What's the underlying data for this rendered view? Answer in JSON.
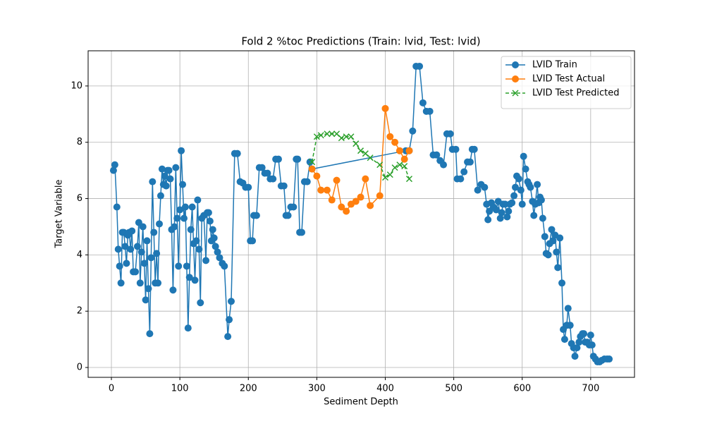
{
  "chart_data": {
    "type": "line",
    "title": "Fold 2 %toc Predictions (Train: lvid, Test: lvid)",
    "x_label": "Sediment Depth",
    "y_label": "Target Variable",
    "xlim": [
      -34,
      764
    ],
    "ylim": [
      -0.35,
      11.25
    ],
    "xticks": [
      0,
      100,
      200,
      300,
      400,
      500,
      600,
      700
    ],
    "yticks": [
      0,
      2,
      4,
      6,
      8,
      10
    ],
    "grid": true,
    "legend": "upper right",
    "series": [
      {
        "name": "LVID Train",
        "color": "#1f77b4",
        "marker": "circle",
        "linestyle": "solid",
        "x": [
          3,
          5,
          8,
          10,
          12,
          14,
          16,
          18,
          20,
          22,
          24,
          26,
          28,
          30,
          32,
          35,
          38,
          40,
          42,
          44,
          46,
          48,
          50,
          52,
          54,
          56,
          58,
          60,
          62,
          64,
          66,
          68,
          70,
          72,
          74,
          76,
          78,
          80,
          82,
          84,
          86,
          88,
          90,
          92,
          94,
          96,
          98,
          100,
          102,
          104,
          106,
          108,
          110,
          112,
          114,
          116,
          118,
          120,
          122,
          124,
          126,
          128,
          130,
          132,
          135,
          138,
          140,
          142,
          144,
          146,
          148,
          150,
          152,
          155,
          158,
          162,
          165,
          170,
          172,
          175,
          180,
          184,
          188,
          192,
          196,
          200,
          203,
          206,
          208,
          212,
          216,
          220,
          224,
          228,
          232,
          236,
          240,
          244,
          248,
          252,
          255,
          258,
          262,
          266,
          270,
          272,
          275,
          278,
          282,
          286,
          290,
          293,
          430,
          435,
          440,
          445,
          450,
          455,
          460,
          465,
          470,
          475,
          480,
          485,
          490,
          495,
          498,
          503,
          505,
          510,
          515,
          520,
          524,
          527,
          530,
          535,
          540,
          545,
          548,
          550,
          552,
          555,
          558,
          562,
          565,
          568,
          570,
          572,
          575,
          578,
          580,
          582,
          585,
          588,
          590,
          592,
          595,
          598,
          600,
          602,
          605,
          608,
          610,
          612,
          615,
          617,
          619,
          622,
          624,
          626,
          628,
          630,
          633,
          635,
          638,
          640,
          643,
          645,
          648,
          650,
          652,
          655,
          658,
          660,
          662,
          665,
          667,
          670,
          672,
          675,
          677,
          680,
          683,
          685,
          688,
          690,
          692,
          695,
          698,
          700,
          702,
          704,
          707,
          710,
          713,
          716,
          720,
          724,
          727
        ],
        "values": [
          7.0,
          7.2,
          5.7,
          4.2,
          3.6,
          3.0,
          4.8,
          4.8,
          4.3,
          3.7,
          4.7,
          4.8,
          4.2,
          4.85,
          3.4,
          3.4,
          4.3,
          5.15,
          3.0,
          4.1,
          5.0,
          3.7,
          2.4,
          4.5,
          2.8,
          1.2,
          3.9,
          6.6,
          4.8,
          3.0,
          4.05,
          3.0,
          5.1,
          6.1,
          7.05,
          6.5,
          6.8,
          6.45,
          7.0,
          7.0,
          6.7,
          4.9,
          2.75,
          5.0,
          7.1,
          5.3,
          3.6,
          5.6,
          7.7,
          6.5,
          5.3,
          5.7,
          3.6,
          1.4,
          3.2,
          4.9,
          5.7,
          4.4,
          3.1,
          4.5,
          5.95,
          4.2,
          2.3,
          5.3,
          5.4,
          3.8,
          5.5,
          5.5,
          5.2,
          4.5,
          4.9,
          4.6,
          4.3,
          4.1,
          3.9,
          3.7,
          3.6,
          1.1,
          1.7,
          2.35,
          7.6,
          7.6,
          6.6,
          6.55,
          6.4,
          6.4,
          4.5,
          4.5,
          5.4,
          5.4,
          7.1,
          7.1,
          6.9,
          6.9,
          6.7,
          6.7,
          7.4,
          7.4,
          6.45,
          6.45,
          5.4,
          5.4,
          5.7,
          5.7,
          7.4,
          7.4,
          4.8,
          4.8,
          6.6,
          6.6,
          7.3,
          7.05,
          7.7,
          7.7,
          8.4,
          10.7,
          10.7,
          9.4,
          9.1,
          9.1,
          7.55,
          7.55,
          7.35,
          7.2,
          8.3,
          8.3,
          7.75,
          7.75,
          6.7,
          6.7,
          6.95,
          7.3,
          7.3,
          7.75,
          7.75,
          6.3,
          6.5,
          6.4,
          5.8,
          5.25,
          5.55,
          5.85,
          5.7,
          5.6,
          5.9,
          5.3,
          5.5,
          5.8,
          5.8,
          5.35,
          5.55,
          5.8,
          5.85,
          6.1,
          6.4,
          6.8,
          6.7,
          6.3,
          5.8,
          7.5,
          7.05,
          6.6,
          6.5,
          6.4,
          5.9,
          5.4,
          5.8,
          6.5,
          5.85,
          6.05,
          5.95,
          5.3,
          4.65,
          4.05,
          4.0,
          4.4,
          4.9,
          4.5,
          4.7,
          4.1,
          3.55,
          4.6,
          3.0,
          1.35,
          1.0,
          1.5,
          2.1,
          1.5,
          0.85,
          0.7,
          0.4,
          0.7,
          0.9,
          1.1,
          1.2,
          1.2,
          0.9,
          0.9,
          0.8,
          1.15,
          0.8,
          0.4,
          0.3,
          0.2,
          0.2,
          0.25,
          0.3,
          0.3,
          0.3
        ]
      },
      {
        "name": "LVID Test Actual",
        "color": "#ff7f0e",
        "marker": "circle",
        "linestyle": "solid",
        "x": [
          293,
          300,
          306,
          315,
          322,
          329,
          336,
          343,
          350,
          357,
          364,
          371,
          378,
          392,
          400,
          407,
          414,
          421,
          428,
          435
        ],
        "values": [
          7.05,
          6.8,
          6.3,
          6.3,
          5.95,
          6.65,
          5.7,
          5.55,
          5.8,
          5.9,
          6.05,
          6.7,
          5.75,
          6.1,
          9.2,
          8.2,
          8.0,
          7.7,
          7.4,
          7.7
        ]
      },
      {
        "name": "LVID Test Predicted",
        "color": "#2ca02c",
        "marker": "x",
        "linestyle": "dashed",
        "x": [
          293,
          300,
          306,
          315,
          322,
          329,
          336,
          343,
          350,
          357,
          364,
          371,
          378,
          392,
          400,
          407,
          414,
          421,
          428,
          435
        ],
        "values": [
          7.3,
          8.2,
          8.25,
          8.3,
          8.3,
          8.3,
          8.15,
          8.2,
          8.2,
          7.95,
          7.7,
          7.6,
          7.45,
          7.2,
          6.75,
          6.85,
          7.1,
          7.2,
          7.15,
          6.7
        ]
      }
    ]
  }
}
